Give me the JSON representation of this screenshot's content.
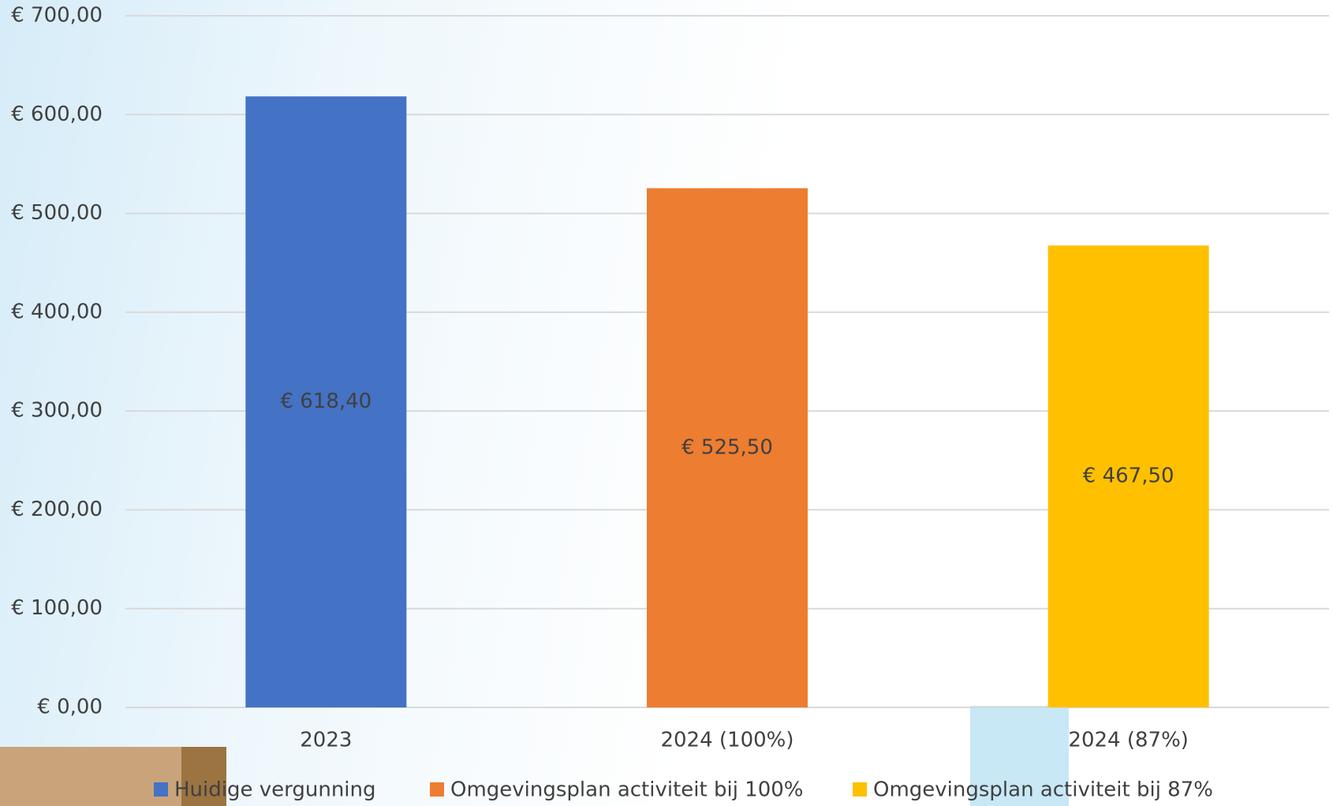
{
  "chart_data": {
    "type": "bar",
    "categories": [
      "2023",
      "2024 (100%)",
      "2024 (87%)"
    ],
    "series": [
      {
        "name": "Huidige vergunning",
        "color": "#4472c4",
        "values": [
          618.4,
          null,
          null
        ],
        "value_labels": [
          "€ 618,40",
          null,
          null
        ]
      },
      {
        "name": "Omgevingsplan activiteit bij 100%",
        "color": "#ed7d31",
        "values": [
          null,
          525.5,
          null
        ],
        "value_labels": [
          null,
          "€ 525,50",
          null
        ]
      },
      {
        "name": "Omgevingsplan activiteit bij 87%",
        "color": "#ffc000",
        "values": [
          null,
          null,
          467.5
        ],
        "value_labels": [
          null,
          null,
          "€ 467,50"
        ]
      }
    ],
    "ylim": [
      0,
      700
    ],
    "yticks": [
      {
        "value": 0,
        "label": "€ 0,00"
      },
      {
        "value": 100,
        "label": "€ 100,00"
      },
      {
        "value": 200,
        "label": "€ 200,00"
      },
      {
        "value": 300,
        "label": "€ 300,00"
      },
      {
        "value": 400,
        "label": "€ 400,00"
      },
      {
        "value": 500,
        "label": "€ 500,00"
      },
      {
        "value": 600,
        "label": "€ 600,00"
      },
      {
        "value": 700,
        "label": "€ 700,00"
      }
    ],
    "grid": true,
    "legend": "bottom"
  }
}
